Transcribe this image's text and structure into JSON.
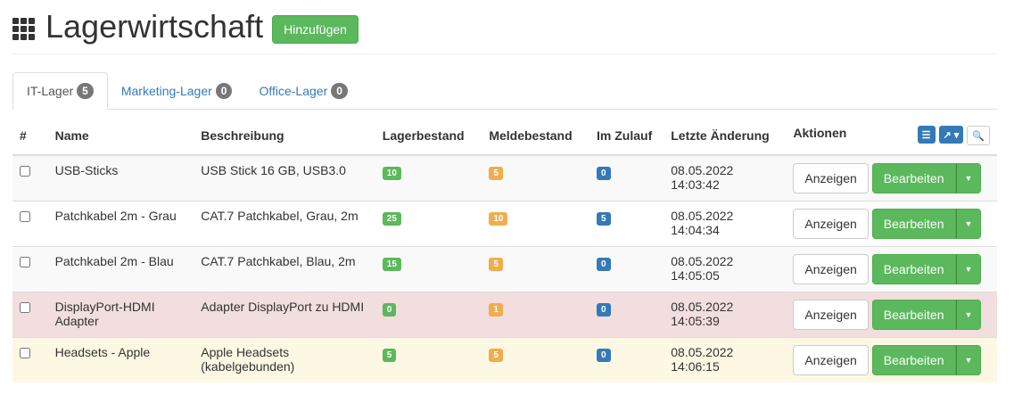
{
  "header": {
    "title": "Lagerwirtschaft",
    "add_label": "Hinzufügen"
  },
  "tabs": [
    {
      "label": "IT-Lager",
      "count": "5",
      "active": true
    },
    {
      "label": "Marketing-Lager",
      "count": "0"
    },
    {
      "label": "Office-Lager",
      "count": "0"
    }
  ],
  "table": {
    "columns": [
      "#",
      "Name",
      "Beschreibung",
      "Lagerbestand",
      "Meldebestand",
      "Im Zulauf",
      "Letzte Änderung",
      "Aktionen"
    ],
    "rows": [
      {
        "name": "USB-Sticks",
        "desc": "USB Stick 16 GB, USB3.0",
        "stock": "10",
        "min": "5",
        "incoming": "0",
        "changed": "08.05.2022 14:03:42",
        "state": "odd"
      },
      {
        "name": "Patchkabel 2m - Grau",
        "desc": "CAT.7 Patchkabel, Grau, 2m",
        "stock": "25",
        "min": "10",
        "incoming": "5",
        "changed": "08.05.2022 14:04:34",
        "state": "even"
      },
      {
        "name": "Patchkabel 2m - Blau",
        "desc": "CAT.7 Patchkabel, Blau, 2m",
        "stock": "15",
        "min": "5",
        "incoming": "0",
        "changed": "08.05.2022 14:05:05",
        "state": "odd"
      },
      {
        "name": "DisplayPort-HDMI Adapter",
        "desc": "Adapter DisplayPort zu HDMI",
        "stock": "0",
        "min": "1",
        "incoming": "0",
        "changed": "08.05.2022 14:05:39",
        "state": "danger"
      },
      {
        "name": "Headsets - Apple",
        "desc": "Apple Headsets (kabelgebunden)",
        "stock": "5",
        "min": "5",
        "incoming": "0",
        "changed": "08.05.2022 14:06:15",
        "state": "warning"
      }
    ],
    "show_label": "Anzeigen",
    "edit_label": "Bearbeiten"
  },
  "colors": {
    "success": "#5cb85c",
    "warning": "#f0ad4e",
    "primary": "#337ab7"
  }
}
